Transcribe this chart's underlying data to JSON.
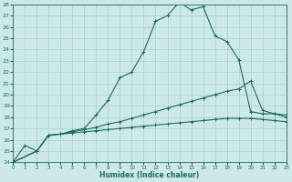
{
  "bg_color": "#cce8e8",
  "grid_color": "#aacfcf",
  "line_color": "#1a6b5a",
  "xlabel": "Humidex (Indice chaleur)",
  "ylim": [
    14,
    28
  ],
  "xlim": [
    0,
    23
  ],
  "yticks": [
    14,
    15,
    16,
    17,
    18,
    19,
    20,
    21,
    22,
    23,
    24,
    25,
    26,
    27,
    28
  ],
  "xticks": [
    0,
    1,
    2,
    3,
    4,
    5,
    6,
    7,
    8,
    9,
    10,
    11,
    12,
    13,
    14,
    15,
    16,
    17,
    18,
    19,
    20,
    21,
    22,
    23
  ],
  "line1_x": [
    0,
    1,
    2,
    3,
    4,
    5,
    6,
    7,
    8,
    9,
    10,
    11,
    12,
    13,
    14,
    15,
    16,
    17,
    18,
    19,
    20,
    21,
    22,
    23
  ],
  "line1_y": [
    14.0,
    15.5,
    15.0,
    16.4,
    16.5,
    16.8,
    17.0,
    18.2,
    19.5,
    21.5,
    22.0,
    23.8,
    26.5,
    27.0,
    28.2,
    27.5,
    27.8,
    25.2,
    24.7,
    23.1,
    18.5,
    18.3,
    18.3,
    18.2
  ],
  "line2_x": [
    0,
    2,
    3,
    4,
    5,
    6,
    7,
    8,
    9,
    10,
    11,
    12,
    13,
    14,
    15,
    16,
    17,
    18,
    19,
    20,
    21,
    22,
    23
  ],
  "line2_y": [
    14.0,
    15.0,
    16.4,
    16.5,
    16.7,
    16.9,
    17.1,
    17.4,
    17.6,
    17.9,
    18.2,
    18.5,
    18.8,
    19.1,
    19.4,
    19.7,
    20.0,
    20.3,
    20.5,
    21.2,
    18.6,
    18.3,
    18.0
  ],
  "line3_x": [
    0,
    2,
    3,
    4,
    5,
    6,
    7,
    8,
    9,
    10,
    11,
    12,
    13,
    14,
    15,
    16,
    17,
    18,
    19,
    20,
    21,
    22,
    23
  ],
  "line3_y": [
    14.0,
    15.0,
    16.4,
    16.5,
    16.6,
    16.7,
    16.8,
    16.9,
    17.0,
    17.1,
    17.2,
    17.3,
    17.4,
    17.5,
    17.6,
    17.7,
    17.8,
    17.9,
    17.9,
    17.9,
    17.8,
    17.7,
    17.6
  ]
}
